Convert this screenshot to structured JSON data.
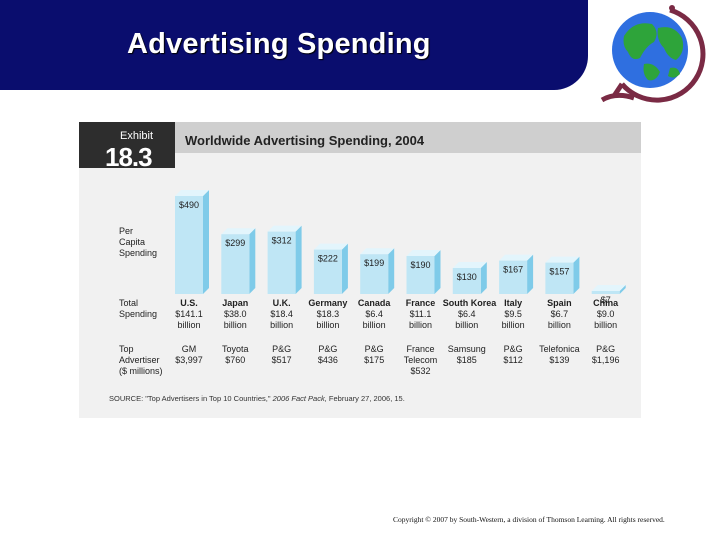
{
  "slide": {
    "title": "Advertising Spending",
    "copyright": "Copyright © 2007 by South-Western, a division of Thomson Learning. All rights reserved.",
    "logo_icon": "globe-icon"
  },
  "exhibit": {
    "label": "Exhibit",
    "number": "18.3",
    "title": "Worldwide Advertising Spending, 2004",
    "source_prefix": "SOURCE: \"Top Advertisers in Top 10 Countries,\"",
    "source_pub": "2006 Fact Pack,",
    "source_suffix": "February 27, 2006, 15."
  },
  "chart_data": {
    "type": "bar",
    "title": "Worldwide Advertising Spending, 2004",
    "categories": [
      "U.S.",
      "Japan",
      "U.K.",
      "Germany",
      "Canada",
      "France",
      "South Korea",
      "Italy",
      "Spain",
      "China"
    ],
    "row_labels": {
      "per_capita": [
        "Per",
        "Capita",
        "Spending"
      ],
      "total": [
        "Total",
        "Spending"
      ],
      "top": [
        "Top",
        "Advertiser",
        "($ millions)"
      ]
    },
    "per_capita_values": [
      490,
      299,
      312,
      222,
      199,
      190,
      130,
      167,
      157,
      7
    ],
    "per_capita_labels": [
      "$490",
      "$299",
      "$312",
      "$222",
      "$199",
      "$190",
      "$130",
      "$167",
      "$157",
      "$7"
    ],
    "total_spending": [
      [
        "$141.1",
        "billion"
      ],
      [
        "$38.0",
        "billion"
      ],
      [
        "$18.4",
        "billion"
      ],
      [
        "$18.3",
        "billion"
      ],
      [
        "$6.4",
        "billion"
      ],
      [
        "$11.1",
        "billion"
      ],
      [
        "$6.4",
        "billion"
      ],
      [
        "$9.5",
        "billion"
      ],
      [
        "$6.7",
        "billion"
      ],
      [
        "$9.0",
        "billion"
      ]
    ],
    "top_advertiser": [
      [
        "GM",
        "$3,997"
      ],
      [
        "Toyota",
        "$760"
      ],
      [
        "P&G",
        "$517"
      ],
      [
        "P&G",
        "$436"
      ],
      [
        "P&G",
        "$175"
      ],
      [
        "France",
        "Telecom",
        "$532"
      ],
      [
        "Samsung",
        "$185"
      ],
      [
        "P&G",
        "$112"
      ],
      [
        "Telefonica",
        "$139"
      ],
      [
        "P&G",
        "$1,196"
      ]
    ],
    "ylim": [
      0,
      500
    ],
    "colors": {
      "bar_front": "#bfe6f5",
      "bar_side": "#7fcbe9",
      "bar_top": "#e3f5fc"
    }
  }
}
